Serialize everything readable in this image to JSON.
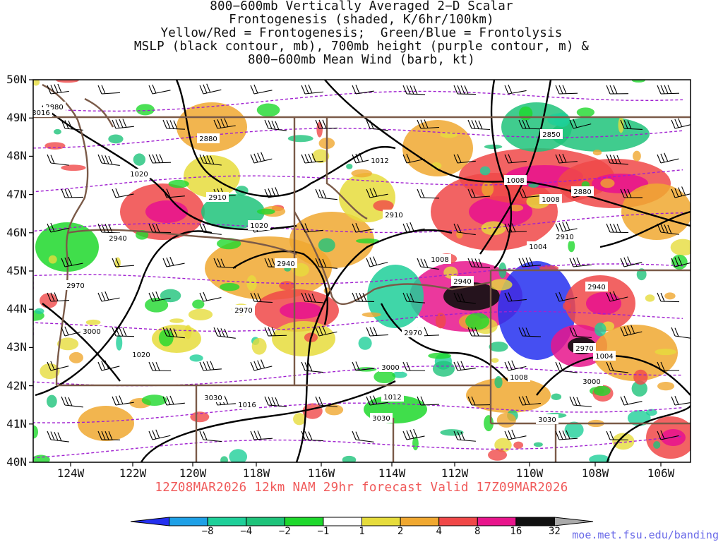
{
  "title_lines": [
    "800−600mb Vertically Averaged 2−D Scalar",
    "Frontogenesis (shaded, K/6hr/100km)",
    "Yellow/Red = Frontogenesis;  Green/Blue = Frontolysis",
    "MSLP (black contour, mb), 700mb height (purple contour, m) &",
    "800−600mb Mean Wind (barb, kt)"
  ],
  "lat_labels": [
    "50N",
    "49N",
    "48N",
    "47N",
    "46N",
    "45N",
    "44N",
    "43N",
    "42N",
    "41N",
    "40N"
  ],
  "lon_labels": [
    "124W",
    "122W",
    "120W",
    "118W",
    "116W",
    "114W",
    "112W",
    "110W",
    "108W",
    "106W"
  ],
  "valid_line": "12Z08MAR2026 12km NAM 29hr forecast Valid 17Z09MAR2026",
  "colorbar": {
    "labels": [
      "−8",
      "−4",
      "−2",
      "−1",
      "1",
      "2",
      "4",
      "8",
      "16",
      "32"
    ],
    "colors": [
      "#2430f0",
      "#1ea0e6",
      "#1ecf99",
      "#1ec37a",
      "#1ed82c",
      "#ffffff",
      "#e6dc3c",
      "#f0a830",
      "#f04848",
      "#e8158c",
      "#101010",
      "#aaaaaa"
    ]
  },
  "credit": "moe.met.fsu.edu/banding",
  "contour_labels": {
    "height": [
      "2880",
      "2880",
      "2880",
      "2910",
      "2910",
      "2910",
      "2940",
      "2940",
      "2940",
      "2940",
      "2970",
      "2970",
      "2970",
      "2970",
      "3000",
      "3000",
      "3000",
      "3030",
      "3030",
      "3030",
      "2850",
      "3016"
    ],
    "pressure": [
      "1020",
      "1020",
      "1020",
      "1016",
      "1012",
      "1012",
      "1008",
      "1008",
      "1008",
      "1008",
      "1004",
      "1004"
    ]
  }
}
